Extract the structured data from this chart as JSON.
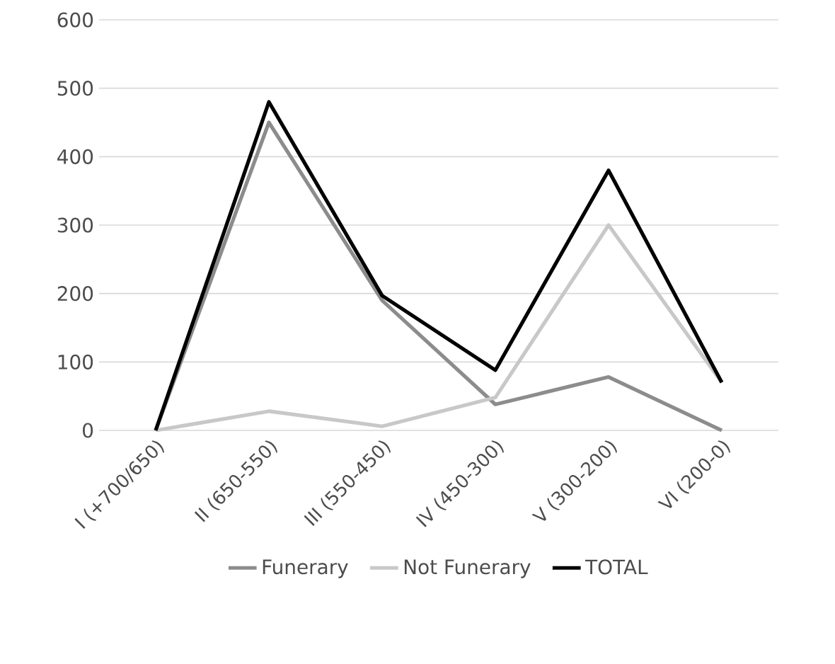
{
  "chart_data": {
    "type": "line",
    "categories": [
      "I (+700/650)",
      "II (650-550)",
      "III (550-450)",
      "IV (450-300)",
      "V (300-200)",
      "VI (200-0)"
    ],
    "series": [
      {
        "name": "Funerary",
        "color": "#8c8c8c",
        "values": [
          0,
          450,
          190,
          38,
          78,
          0
        ]
      },
      {
        "name": "Not Funerary",
        "color": "#c8c8c8",
        "values": [
          0,
          28,
          6,
          48,
          300,
          70
        ]
      },
      {
        "name": "TOTAL",
        "color": "#000000",
        "values": [
          0,
          480,
          197,
          88,
          380,
          70
        ]
      }
    ],
    "ylim": [
      0,
      600
    ],
    "yticks": [
      0,
      100,
      200,
      300,
      400,
      500,
      600
    ],
    "grid": "y",
    "legend": "bottom",
    "marker": "none",
    "line_style": "solid"
  }
}
